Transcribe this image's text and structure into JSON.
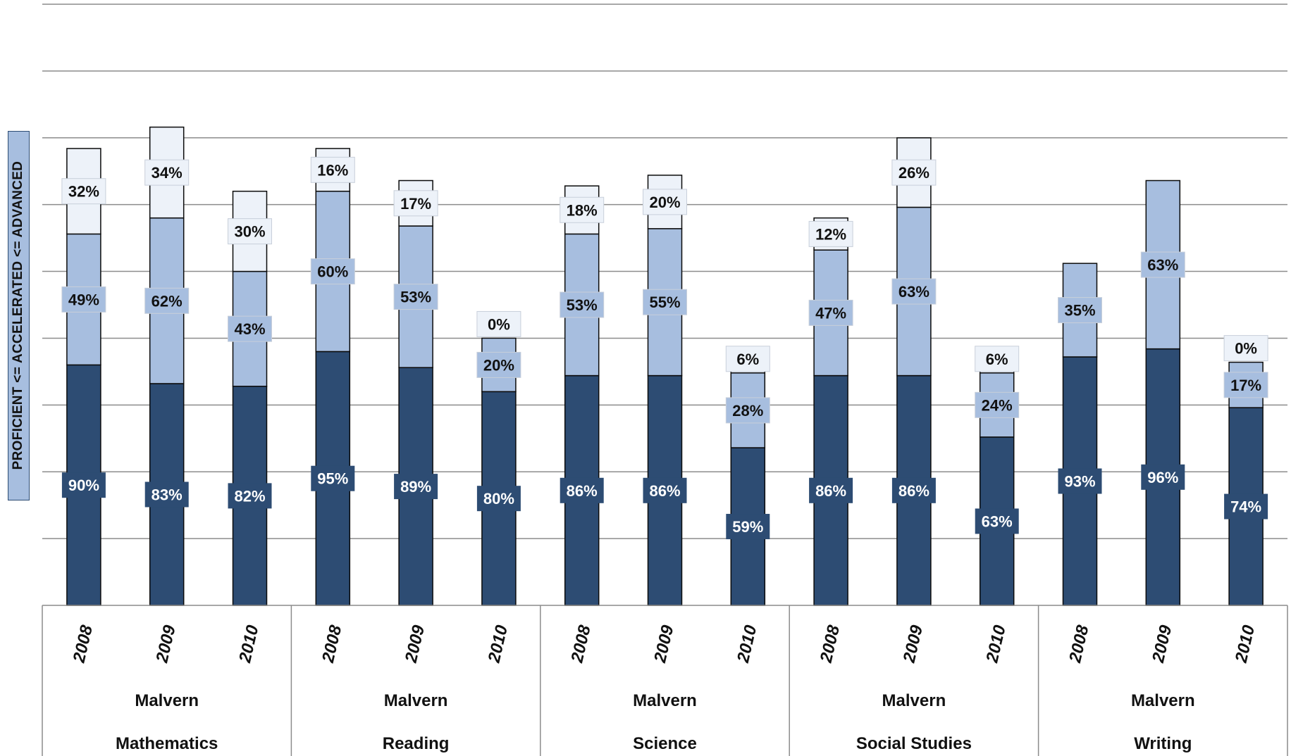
{
  "chart_data": {
    "type": "bar",
    "stacked": true,
    "ylabel": "PROFICIENT <= ACCELERATED <= ADVANCED",
    "ylim": [
      0,
      225
    ],
    "grid": true,
    "legend": "none",
    "x_levels": {
      "years": [
        "2008",
        "2009",
        "2010",
        "2008",
        "2009",
        "2010",
        "2008",
        "2009",
        "2010",
        "2008",
        "2009",
        "2010",
        "2008",
        "2009",
        "2010"
      ],
      "groups": [
        {
          "district": "Malvern",
          "subject": "Mathematics"
        },
        {
          "district": "Malvern",
          "subject": "Reading"
        },
        {
          "district": "Malvern",
          "subject": "Science"
        },
        {
          "district": "Malvern",
          "subject": "Social Studies"
        },
        {
          "district": "Malvern",
          "subject": "Writing"
        }
      ]
    },
    "series": [
      {
        "key": "proficient",
        "color": "#2d4c73",
        "values": [
          90,
          83,
          82,
          95,
          89,
          80,
          86,
          86,
          59,
          86,
          86,
          63,
          93,
          96,
          74
        ],
        "labels": [
          "90%",
          "83%",
          "82%",
          "95%",
          "89%",
          "80%",
          "86%",
          "86%",
          "59%",
          "86%",
          "86%",
          "63%",
          "93%",
          "96%",
          "74%"
        ]
      },
      {
        "key": "accelerated",
        "color": "#a7bedf",
        "values": [
          49,
          62,
          43,
          60,
          53,
          20,
          53,
          55,
          28,
          47,
          63,
          24,
          35,
          63,
          17
        ],
        "labels": [
          "49%",
          "62%",
          "43%",
          "60%",
          "53%",
          "20%",
          "53%",
          "55%",
          "28%",
          "47%",
          "63%",
          "24%",
          "35%",
          "63%",
          "17%"
        ]
      },
      {
        "key": "advanced",
        "color": "#edf2f9",
        "values": [
          32,
          34,
          30,
          16,
          17,
          0,
          18,
          20,
          6,
          12,
          26,
          6,
          null,
          null,
          0
        ],
        "labels": [
          "32%",
          "34%",
          "30%",
          "16%",
          "17%",
          "0%",
          "18%",
          "20%",
          "6%",
          "12%",
          "26%",
          "6%",
          null,
          null,
          "0%"
        ]
      }
    ]
  }
}
